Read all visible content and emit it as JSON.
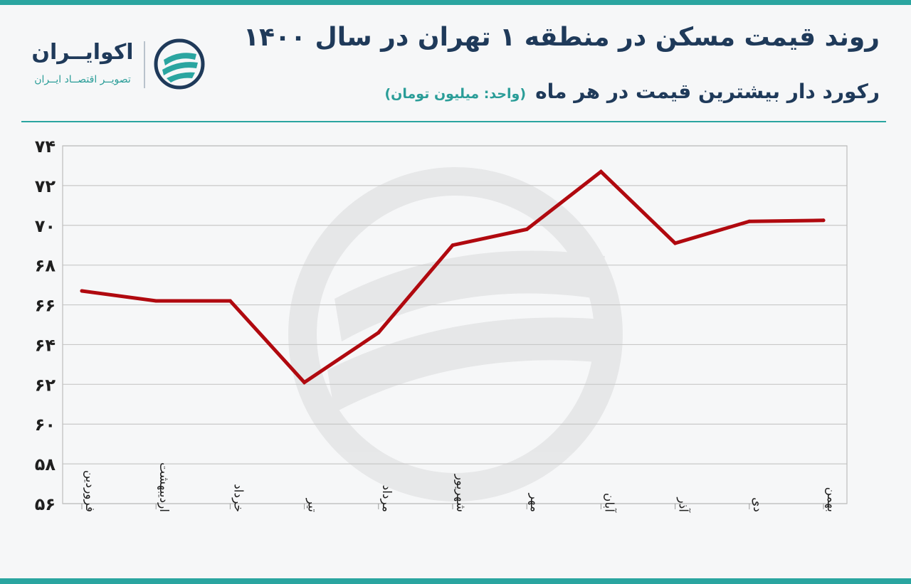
{
  "header": {
    "title": "روند قیمت مسکن در منطقه ۱ تهران در سال ۱۴۰۰",
    "subtitle": "رکورد دار بیشترین قیمت در هر ماه",
    "unit_note": "(واحد: میلیون تومان)"
  },
  "logo": {
    "name": "اکوایــران",
    "tagline": "تصویــر اقتصــاد ایــران",
    "icon": "ecoiran-logo-icon"
  },
  "colors": {
    "accent": "#2aa5a0",
    "title": "#1f3a5a",
    "line": "#b0090f",
    "grid": "#c8c8c8"
  },
  "chart_data": {
    "type": "line",
    "categories": [
      "فروردین",
      "اردیبهشت",
      "خرداد",
      "تیر",
      "مرداد",
      "شهریور",
      "مهر",
      "آبان",
      "آذر",
      "دی",
      "بهمن"
    ],
    "series": [
      {
        "values": [
          66.7,
          66.2,
          66.2,
          62.1,
          64.6,
          69.0,
          69.8,
          72.7,
          69.1,
          70.2,
          70.25
        ]
      }
    ],
    "ylim": [
      56,
      74
    ],
    "yticks": [
      56,
      58,
      60,
      62,
      64,
      66,
      68,
      70,
      72,
      74
    ],
    "ytick_labels": [
      "۵۶",
      "۵۸",
      "۶۰",
      "۶۲",
      "۶۴",
      "۶۶",
      "۶۸",
      "۷۰",
      "۷۲",
      "۷۴"
    ],
    "grid": true,
    "legend": "none"
  }
}
